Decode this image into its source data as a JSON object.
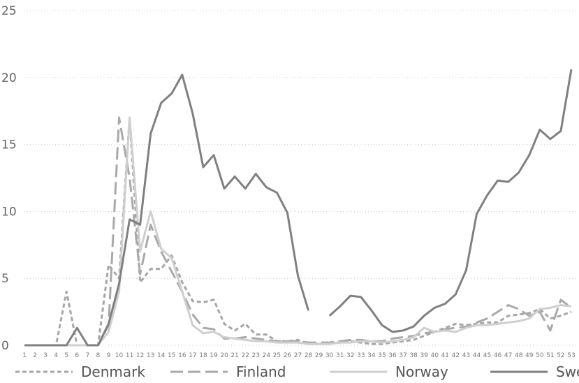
{
  "chart_data": {
    "type": "line",
    "title": "",
    "xlabel": "",
    "ylabel": "",
    "ylim": [
      0,
      25
    ],
    "yticks": [
      0,
      5,
      10,
      15,
      20,
      25
    ],
    "grid": true,
    "legend_position": "bottom",
    "x": [
      1,
      2,
      3,
      4,
      5,
      6,
      7,
      8,
      9,
      10,
      11,
      12,
      13,
      14,
      15,
      16,
      17,
      18,
      19,
      20,
      21,
      22,
      23,
      24,
      25,
      26,
      27,
      28,
      29,
      30,
      31,
      32,
      33,
      34,
      35,
      36,
      37,
      38,
      39,
      40,
      41,
      42,
      43,
      44,
      45,
      46,
      47,
      48,
      49,
      50,
      51,
      52,
      53
    ],
    "x_tick_labels": [
      "1",
      "2",
      "3",
      "4",
      "5",
      "6",
      "7",
      "8",
      "9",
      "10",
      "11",
      "12",
      "13",
      "14",
      "15",
      "16",
      "17",
      "18",
      "19",
      "20",
      "21",
      "22",
      "23",
      "24",
      "25",
      "26",
      "27",
      "28",
      "29",
      "30",
      "31",
      "32",
      "33",
      "34",
      "35",
      "36",
      "37",
      "38",
      "39",
      "40",
      "41",
      "42",
      "43",
      "44",
      "45",
      "46",
      "47",
      "48",
      "49",
      "50",
      "51",
      "52",
      "53"
    ],
    "series": [
      {
        "name": "Denmark",
        "color": "#a6a6a6",
        "dash": "short-dash",
        "values": [
          0,
          0,
          0,
          0,
          4.0,
          0,
          0,
          0,
          6.0,
          5.0,
          17.0,
          4.7,
          5.7,
          5.7,
          6.7,
          4.7,
          3.3,
          3.2,
          3.4,
          1.6,
          1.1,
          1.6,
          0.8,
          0.8,
          0.3,
          0.3,
          0.4,
          0.1,
          0.1,
          0.2,
          0.2,
          0.3,
          0.2,
          0.1,
          0.1,
          0.2,
          0.3,
          0.4,
          0.7,
          1.0,
          1.3,
          1.6,
          1.5,
          1.6,
          1.7,
          1.7,
          2.2,
          2.3,
          2.4,
          2.7,
          2.0,
          2.2,
          2.5
        ]
      },
      {
        "name": "Finland",
        "color": "#a9a9a9",
        "dash": "long-dash",
        "values": [
          0,
          0,
          0,
          0,
          0,
          0,
          0,
          0,
          1.5,
          17.0,
          12.5,
          5.3,
          9.0,
          7.0,
          5.5,
          4.0,
          2.3,
          1.3,
          1.2,
          0.5,
          0.5,
          0.6,
          0.5,
          0.4,
          0.3,
          0.3,
          0.3,
          0.2,
          0.2,
          0.2,
          0.3,
          0.4,
          0.4,
          0.3,
          0.3,
          0.5,
          0.6,
          0.7,
          0.9,
          1.0,
          1.2,
          1.3,
          1.4,
          1.7,
          2.0,
          2.5,
          3.0,
          2.7,
          2.2,
          2.5,
          1.1,
          3.4,
          2.8
        ]
      },
      {
        "name": "Norway",
        "color": "#cfcfcf",
        "dash": "solid",
        "values": [
          0,
          0,
          0,
          0,
          0,
          0,
          0,
          0,
          1.0,
          4.0,
          17.0,
          7.0,
          10.0,
          7.2,
          6.5,
          4.0,
          1.5,
          0.9,
          1.0,
          0.6,
          0.5,
          0.4,
          0.3,
          0.3,
          0.2,
          0.2,
          0.2,
          0.1,
          0.1,
          0.1,
          0.2,
          0.2,
          0.3,
          0.3,
          0.2,
          0.3,
          0.4,
          0.6,
          1.3,
          1.0,
          1.1,
          1.0,
          1.3,
          1.5,
          1.5,
          1.6,
          1.7,
          1.8,
          2.0,
          2.7,
          2.8,
          3.0,
          2.9
        ]
      },
      {
        "name": "Sweden",
        "color": "#808080",
        "dash": "solid",
        "values": [
          0,
          0,
          0,
          0,
          0,
          1.3,
          0,
          0,
          1.6,
          4.6,
          9.4,
          9.0,
          15.8,
          18.1,
          18.8,
          20.2,
          17.3,
          13.3,
          14.2,
          11.7,
          12.6,
          11.7,
          12.8,
          11.8,
          11.4,
          9.9,
          5.2,
          2.6,
          null,
          2.2,
          2.9,
          3.7,
          3.6,
          2.6,
          1.5,
          1.0,
          1.1,
          1.4,
          2.2,
          2.8,
          3.1,
          3.8,
          5.6,
          9.8,
          11.2,
          12.3,
          12.2,
          12.9,
          14.2,
          16.1,
          15.4,
          16.0,
          20.6
        ]
      }
    ]
  }
}
